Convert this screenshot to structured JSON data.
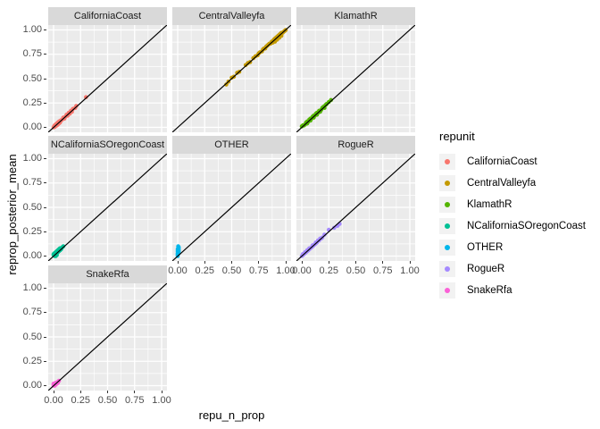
{
  "figure": {
    "x_axis_title": "repu_n_prop",
    "y_axis_title": "reprop_posterior_mean",
    "x_tick_labels": [
      "0.00",
      "0.25",
      "0.50",
      "0.75",
      "1.00"
    ],
    "y_tick_labels": [
      "1.00",
      "0.75",
      "0.50",
      "0.25",
      "0.00"
    ]
  },
  "legend": {
    "title": "repunit",
    "items": [
      {
        "label": "CaliforniaCoast",
        "color": "#F8766D"
      },
      {
        "label": "CentralValleyfa",
        "color": "#C49A00"
      },
      {
        "label": "KlamathR",
        "color": "#53B400"
      },
      {
        "label": "NCaliforniaSOregonCoast",
        "color": "#00C094"
      },
      {
        "label": "OTHER",
        "color": "#00B6EB"
      },
      {
        "label": "RogueR",
        "color": "#A58AFF"
      },
      {
        "label": "SnakeRfa",
        "color": "#FB61D7"
      }
    ]
  },
  "style": {
    "panel_bg": "#EBEBEB",
    "strip_bg": "#D9D9D9",
    "grid_color": "#FFFFFF",
    "tick_text_color": "#4D4D4D",
    "reference_line_color": "#000000"
  },
  "chart_data": {
    "type": "scatter",
    "title": "",
    "xlabel": "repu_n_prop",
    "ylabel": "reprop_posterior_mean",
    "facet_variable": "repunit",
    "xlim": [
      0,
      1
    ],
    "ylim": [
      0,
      1
    ],
    "x_ticks": [
      0,
      0.25,
      0.5,
      0.75,
      1
    ],
    "y_ticks": [
      0,
      0.25,
      0.5,
      0.75,
      1
    ],
    "grid": "on",
    "legend_position": "right",
    "reference_line": {
      "type": "abline",
      "slope": 1,
      "intercept": 0
    },
    "facets": [
      {
        "name": "CaliforniaCoast",
        "color": "#F8766D",
        "row": 0,
        "col": 0,
        "points": [
          [
            0.0,
            0.0
          ],
          [
            0.005,
            0.01
          ],
          [
            0.01,
            0.005
          ],
          [
            0.01,
            0.02
          ],
          [
            0.015,
            0.01
          ],
          [
            0.02,
            0.015
          ],
          [
            0.02,
            0.03
          ],
          [
            0.025,
            0.02
          ],
          [
            0.03,
            0.02
          ],
          [
            0.03,
            0.04
          ],
          [
            0.035,
            0.03
          ],
          [
            0.04,
            0.03
          ],
          [
            0.04,
            0.05
          ],
          [
            0.05,
            0.04
          ],
          [
            0.05,
            0.06
          ],
          [
            0.055,
            0.05
          ],
          [
            0.06,
            0.05
          ],
          [
            0.065,
            0.07
          ],
          [
            0.07,
            0.07
          ],
          [
            0.08,
            0.08
          ],
          [
            0.09,
            0.1
          ],
          [
            0.1,
            0.09
          ],
          [
            0.11,
            0.11
          ],
          [
            0.12,
            0.13
          ],
          [
            0.13,
            0.12
          ],
          [
            0.14,
            0.15
          ],
          [
            0.15,
            0.14
          ],
          [
            0.16,
            0.17
          ],
          [
            0.17,
            0.16
          ],
          [
            0.18,
            0.19
          ],
          [
            0.2,
            0.2
          ],
          [
            0.21,
            0.22
          ],
          [
            0.3,
            0.31
          ]
        ]
      },
      {
        "name": "CentralValleyfa",
        "color": "#C49A00",
        "row": 0,
        "col": 1,
        "points": [
          [
            0.45,
            0.44
          ],
          [
            0.47,
            0.47
          ],
          [
            0.5,
            0.51
          ],
          [
            0.52,
            0.52
          ],
          [
            0.55,
            0.56
          ],
          [
            0.57,
            0.57
          ],
          [
            0.63,
            0.64
          ],
          [
            0.65,
            0.66
          ],
          [
            0.67,
            0.67
          ],
          [
            0.7,
            0.71
          ],
          [
            0.72,
            0.73
          ],
          [
            0.74,
            0.74
          ],
          [
            0.75,
            0.76
          ],
          [
            0.76,
            0.77
          ],
          [
            0.78,
            0.78
          ],
          [
            0.79,
            0.8
          ],
          [
            0.8,
            0.81
          ],
          [
            0.81,
            0.81
          ],
          [
            0.82,
            0.83
          ],
          [
            0.83,
            0.84
          ],
          [
            0.84,
            0.85
          ],
          [
            0.85,
            0.86
          ],
          [
            0.86,
            0.86
          ],
          [
            0.87,
            0.88
          ],
          [
            0.88,
            0.87
          ],
          [
            0.89,
            0.9
          ],
          [
            0.9,
            0.88
          ],
          [
            0.9,
            0.91
          ],
          [
            0.91,
            0.92
          ],
          [
            0.92,
            0.9
          ],
          [
            0.92,
            0.93
          ],
          [
            0.93,
            0.94
          ],
          [
            0.94,
            0.92
          ],
          [
            0.94,
            0.95
          ],
          [
            0.95,
            0.96
          ],
          [
            0.96,
            0.94
          ],
          [
            0.96,
            0.97
          ],
          [
            0.97,
            0.97
          ],
          [
            0.98,
            0.98
          ],
          [
            0.99,
            0.99
          ],
          [
            1.0,
            1.0
          ]
        ]
      },
      {
        "name": "KlamathR",
        "color": "#53B400",
        "row": 0,
        "col": 2,
        "points": [
          [
            0.0,
            0.01
          ],
          [
            0.01,
            0.02
          ],
          [
            0.02,
            0.02
          ],
          [
            0.03,
            0.03
          ],
          [
            0.04,
            0.05
          ],
          [
            0.05,
            0.04
          ],
          [
            0.05,
            0.06
          ],
          [
            0.06,
            0.06
          ],
          [
            0.07,
            0.08
          ],
          [
            0.08,
            0.07
          ],
          [
            0.08,
            0.09
          ],
          [
            0.09,
            0.09
          ],
          [
            0.1,
            0.11
          ],
          [
            0.11,
            0.1
          ],
          [
            0.11,
            0.12
          ],
          [
            0.12,
            0.12
          ],
          [
            0.13,
            0.14
          ],
          [
            0.14,
            0.13
          ],
          [
            0.14,
            0.15
          ],
          [
            0.15,
            0.15
          ],
          [
            0.16,
            0.17
          ],
          [
            0.17,
            0.16
          ],
          [
            0.18,
            0.18
          ],
          [
            0.19,
            0.2
          ],
          [
            0.2,
            0.21
          ],
          [
            0.21,
            0.2
          ],
          [
            0.22,
            0.23
          ],
          [
            0.23,
            0.24
          ],
          [
            0.25,
            0.26
          ],
          [
            0.27,
            0.28
          ]
        ]
      },
      {
        "name": "NCaliforniaSOregonCoast",
        "color": "#00C094",
        "row": 1,
        "col": 0,
        "points": [
          [
            0.0,
            0.01
          ],
          [
            0.0,
            0.02
          ],
          [
            0.01,
            0.0
          ],
          [
            0.01,
            0.01
          ],
          [
            0.01,
            0.03
          ],
          [
            0.02,
            0.0
          ],
          [
            0.02,
            0.02
          ],
          [
            0.02,
            0.04
          ],
          [
            0.03,
            0.01
          ],
          [
            0.03,
            0.03
          ],
          [
            0.03,
            0.05
          ],
          [
            0.04,
            0.04
          ],
          [
            0.04,
            0.06
          ],
          [
            0.05,
            0.05
          ],
          [
            0.05,
            0.07
          ],
          [
            0.06,
            0.06
          ],
          [
            0.06,
            0.08
          ],
          [
            0.07,
            0.07
          ],
          [
            0.08,
            0.09
          ],
          [
            0.09,
            0.1
          ]
        ]
      },
      {
        "name": "OTHER",
        "color": "#00B6EB",
        "row": 1,
        "col": 1,
        "points": [
          [
            0.0,
            0.0
          ],
          [
            0.0,
            0.01
          ],
          [
            0.0,
            0.02
          ],
          [
            0.0,
            0.03
          ],
          [
            0.0,
            0.05
          ],
          [
            0.0,
            0.07
          ],
          [
            0.005,
            0.04
          ],
          [
            0.005,
            0.05
          ],
          [
            0.005,
            0.06
          ],
          [
            0.005,
            0.08
          ],
          [
            0.005,
            0.1
          ],
          [
            0.01,
            0.03
          ],
          [
            0.01,
            0.05
          ],
          [
            0.01,
            0.07
          ],
          [
            0.01,
            0.09
          ]
        ]
      },
      {
        "name": "RogueR",
        "color": "#A58AFF",
        "row": 1,
        "col": 2,
        "points": [
          [
            0.0,
            0.0
          ],
          [
            0.01,
            0.01
          ],
          [
            0.01,
            0.02
          ],
          [
            0.02,
            0.02
          ],
          [
            0.03,
            0.03
          ],
          [
            0.03,
            0.04
          ],
          [
            0.04,
            0.04
          ],
          [
            0.05,
            0.05
          ],
          [
            0.05,
            0.06
          ],
          [
            0.06,
            0.06
          ],
          [
            0.07,
            0.07
          ],
          [
            0.07,
            0.08
          ],
          [
            0.08,
            0.08
          ],
          [
            0.09,
            0.09
          ],
          [
            0.1,
            0.1
          ],
          [
            0.1,
            0.11
          ],
          [
            0.11,
            0.11
          ],
          [
            0.12,
            0.12
          ],
          [
            0.13,
            0.13
          ],
          [
            0.13,
            0.14
          ],
          [
            0.14,
            0.14
          ],
          [
            0.15,
            0.16
          ],
          [
            0.16,
            0.16
          ],
          [
            0.17,
            0.18
          ],
          [
            0.18,
            0.18
          ],
          [
            0.19,
            0.19
          ],
          [
            0.21,
            0.22
          ],
          [
            0.25,
            0.27
          ],
          [
            0.3,
            0.29
          ],
          [
            0.33,
            0.31
          ],
          [
            0.35,
            0.33
          ]
        ]
      },
      {
        "name": "SnakeRfa",
        "color": "#FB61D7",
        "row": 2,
        "col": 0,
        "points": [
          [
            0.0,
            0.0
          ],
          [
            0.0,
            0.01
          ],
          [
            0.0,
            0.02
          ],
          [
            0.01,
            0.0
          ],
          [
            0.01,
            0.01
          ],
          [
            0.01,
            0.02
          ],
          [
            0.02,
            0.01
          ],
          [
            0.02,
            0.02
          ],
          [
            0.02,
            0.03
          ],
          [
            0.03,
            0.02
          ],
          [
            0.03,
            0.03
          ],
          [
            0.04,
            0.03
          ],
          [
            0.04,
            0.04
          ],
          [
            0.05,
            0.05
          ]
        ]
      }
    ]
  }
}
